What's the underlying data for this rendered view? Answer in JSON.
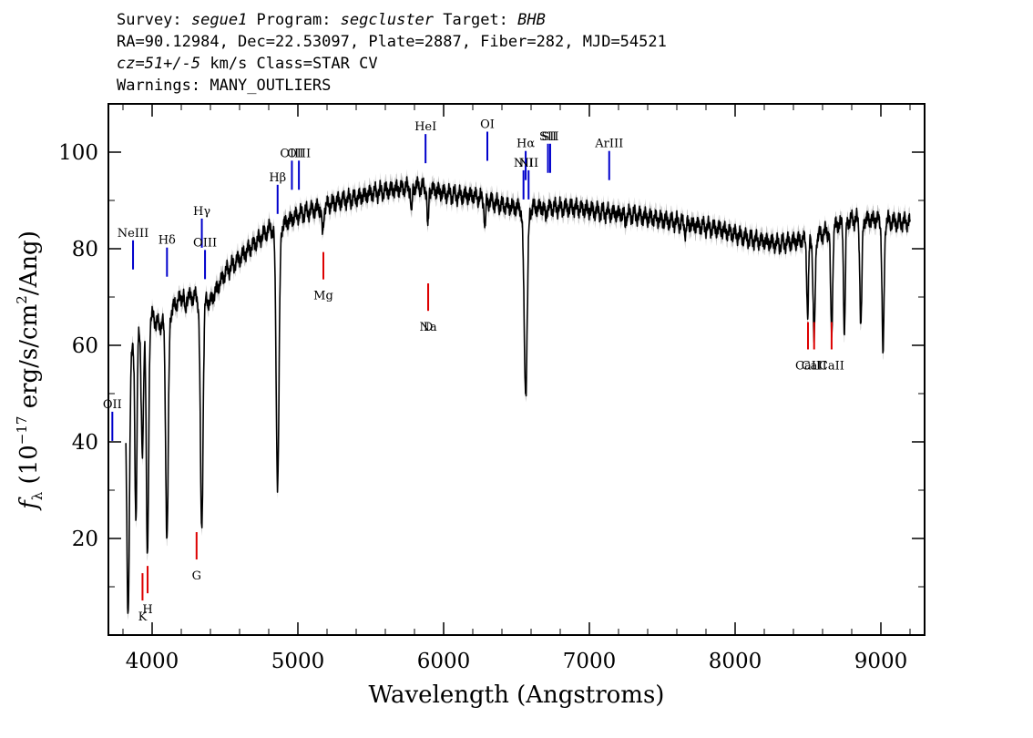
{
  "header": {
    "line1": {
      "p1": "Survey: ",
      "v1": "segue1",
      "p2": " Program: ",
      "v2": "segcluster",
      "p3": " Target: ",
      "v3": "BHB"
    },
    "line2": "RA=90.12984, Dec=22.53097, Plate=2887, Fiber=282, MJD=54521",
    "line3": {
      "v1": "cz=51+/-5",
      "rest": " km/s Class=STAR CV"
    },
    "line4": "Warnings: MANY_OUTLIERS"
  },
  "chart_data": {
    "type": "line",
    "xlabel": "Wavelength (Angstroms)",
    "ylabel_parts": {
      "f": "f",
      "sub": "λ",
      "mid": " (10",
      "exp": "−17",
      "unit": " erg/s/cm",
      "exp2": "2",
      "end": "/Ang)"
    },
    "xlim": [
      3700,
      9300
    ],
    "ylim": [
      0,
      110
    ],
    "xticks": [
      4000,
      5000,
      6000,
      7000,
      8000,
      9000
    ],
    "xtick_labels": [
      "4000",
      "5000",
      "6000",
      "7000",
      "8000",
      "9000"
    ],
    "yticks": [
      20,
      40,
      60,
      80,
      100
    ],
    "ytick_labels": [
      "20",
      "40",
      "60",
      "80",
      "100"
    ],
    "colors": {
      "spectrum": "#000000",
      "error_band": "#b8b8b8",
      "emission": "#0000cc",
      "absorption": "#dd0000"
    },
    "continuum": [
      [
        3820,
        52
      ],
      [
        3880,
        62
      ],
      [
        3950,
        68
      ],
      [
        4050,
        64
      ],
      [
        4150,
        68
      ],
      [
        4200,
        70
      ],
      [
        4300,
        70
      ],
      [
        4400,
        69
      ],
      [
        4500,
        75
      ],
      [
        4600,
        78
      ],
      [
        4700,
        81
      ],
      [
        4800,
        84
      ],
      [
        4900,
        85
      ],
      [
        5000,
        87
      ],
      [
        5100,
        88
      ],
      [
        5200,
        89
      ],
      [
        5300,
        90
      ],
      [
        5400,
        90.5
      ],
      [
        5500,
        91.5
      ],
      [
        5600,
        92
      ],
      [
        5700,
        92.5
      ],
      [
        5800,
        93
      ],
      [
        5900,
        92.5
      ],
      [
        6000,
        91.5
      ],
      [
        6100,
        91
      ],
      [
        6200,
        91
      ],
      [
        6300,
        90
      ],
      [
        6400,
        89
      ],
      [
        6500,
        88.5
      ],
      [
        6700,
        88.5
      ],
      [
        6900,
        88.5
      ],
      [
        7100,
        87.5
      ],
      [
        7300,
        87
      ],
      [
        7500,
        86
      ],
      [
        7700,
        85
      ],
      [
        7900,
        84
      ],
      [
        8100,
        82
      ],
      [
        8300,
        81
      ],
      [
        8500,
        82
      ],
      [
        8600,
        83
      ],
      [
        8700,
        85
      ],
      [
        8800,
        86
      ],
      [
        8900,
        86
      ],
      [
        9000,
        86
      ],
      [
        9100,
        85.5
      ],
      [
        9200,
        85.5
      ]
    ],
    "absorption_features": [
      [
        3835,
        50,
        9
      ],
      [
        3889,
        40,
        7
      ],
      [
        3933,
        30,
        8
      ],
      [
        3968,
        52,
        8
      ],
      [
        4102,
        46,
        9
      ],
      [
        4227,
        4,
        4
      ],
      [
        4340,
        48,
        9
      ],
      [
        4861,
        53,
        10
      ],
      [
        5170,
        6,
        6
      ],
      [
        5780,
        6,
        5
      ],
      [
        5892,
        9,
        5
      ],
      [
        6284,
        6,
        5
      ],
      [
        6563,
        38,
        11
      ],
      [
        6700,
        2,
        5
      ],
      [
        7245,
        2,
        4
      ],
      [
        7660,
        2,
        5
      ],
      [
        8498,
        16,
        6
      ],
      [
        8542,
        22,
        7
      ],
      [
        8662,
        22,
        7
      ],
      [
        8750,
        23,
        6
      ],
      [
        8863,
        22,
        7
      ],
      [
        9015,
        28,
        7
      ]
    ],
    "emission_lines": [
      {
        "label": "OII",
        "x": 3727,
        "label_y": 47
      },
      {
        "label": "NeIII",
        "x": 3869,
        "label_y": 82.5
      },
      {
        "label": "Hδ",
        "x": 4102,
        "label_y": 81
      },
      {
        "label": "Hγ",
        "x": 4341,
        "label_y": 87
      },
      {
        "label": "OIII",
        "x": 4363,
        "label_y": 80.5
      },
      {
        "label": "Hβ",
        "x": 4861,
        "label_y": 94
      },
      {
        "label": "OIII",
        "x": 4959,
        "label_y": 99
      },
      {
        "label": "OIII",
        "x": 5007,
        "label_y": 99
      },
      {
        "label": "HeI",
        "x": 5876,
        "label_y": 104.5
      },
      {
        "label": "OI",
        "x": 6300,
        "label_y": 105
      },
      {
        "label": "NII",
        "x": 6548,
        "label_y": 97
      },
      {
        "label": "Hα",
        "x": 6563,
        "label_y": 101
      },
      {
        "label": "NII",
        "x": 6583,
        "label_y": 97
      },
      {
        "label": "SII",
        "x": 6716,
        "label_y": 102.5
      },
      {
        "label": "SII",
        "x": 6731,
        "label_y": 102.5
      },
      {
        "label": "ArIII",
        "x": 7136,
        "label_y": 101
      }
    ],
    "absorption_lines": [
      {
        "label": "K",
        "x": 3934,
        "label_y": 3
      },
      {
        "label": "H",
        "x": 3969,
        "label_y": 4.5
      },
      {
        "label": "G",
        "x": 4305,
        "label_y": 11.5
      },
      {
        "label": "Mg",
        "x": 5175,
        "label_y": 69.5
      },
      {
        "label": "Na",
        "x": 5894,
        "label_y": 63
      },
      {
        "label": "D",
        "x": 5894,
        "label_y": 63
      },
      {
        "label": "CaII",
        "x": 8500,
        "label_y": 55
      },
      {
        "label": "CaII",
        "x": 8542,
        "label_y": 55
      },
      {
        "label": "CaII",
        "x": 8662,
        "label_y": 55
      }
    ]
  }
}
